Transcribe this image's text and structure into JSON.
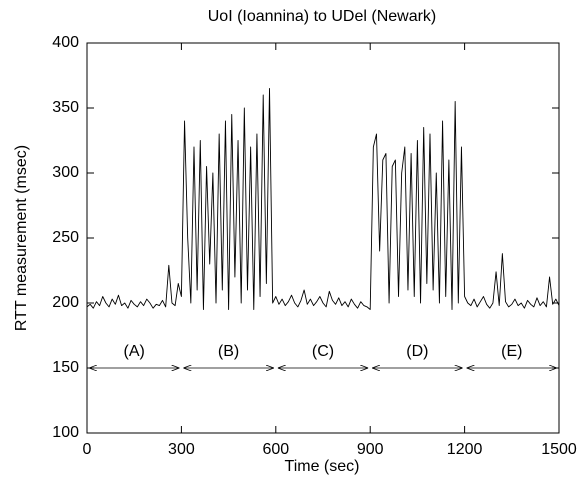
{
  "chart_data": {
    "type": "line",
    "title": "UoI (Ioannina) to UDel (Newark)",
    "xlabel": "Time (sec)",
    "ylabel": "RTT measurement (msec)",
    "x": [
      0,
      10,
      20,
      30,
      40,
      50,
      60,
      70,
      80,
      90,
      100,
      110,
      120,
      130,
      140,
      150,
      160,
      170,
      180,
      190,
      200,
      210,
      220,
      230,
      240,
      250,
      260,
      270,
      280,
      290,
      300,
      310,
      320,
      330,
      340,
      350,
      360,
      370,
      380,
      390,
      400,
      410,
      420,
      430,
      440,
      450,
      460,
      470,
      480,
      490,
      500,
      510,
      520,
      530,
      540,
      550,
      560,
      570,
      580,
      590,
      600,
      610,
      620,
      630,
      640,
      650,
      660,
      670,
      680,
      690,
      700,
      710,
      720,
      730,
      740,
      750,
      760,
      770,
      780,
      790,
      800,
      810,
      820,
      830,
      840,
      850,
      860,
      870,
      880,
      890,
      900,
      910,
      920,
      930,
      940,
      950,
      960,
      970,
      980,
      990,
      1000,
      1010,
      1020,
      1030,
      1040,
      1050,
      1060,
      1070,
      1080,
      1090,
      1100,
      1110,
      1120,
      1130,
      1140,
      1150,
      1160,
      1170,
      1180,
      1190,
      1200,
      1210,
      1220,
      1230,
      1240,
      1250,
      1260,
      1270,
      1280,
      1290,
      1300,
      1310,
      1320,
      1330,
      1340,
      1350,
      1360,
      1370,
      1380,
      1390,
      1400,
      1410,
      1420,
      1430,
      1440,
      1450,
      1460,
      1470,
      1480,
      1490,
      1500
    ],
    "series": [
      {
        "color": "#000000",
        "values": [
          197,
          199,
          196,
          201,
          198,
          205,
          200,
          197,
          203,
          199,
          206,
          198,
          200,
          196,
          202,
          199,
          197,
          201,
          198,
          203,
          200,
          196,
          199,
          198,
          202,
          197,
          229,
          200,
          198,
          215,
          205,
          340,
          250,
          200,
          320,
          210,
          325,
          195,
          305,
          230,
          300,
          200,
          330,
          210,
          340,
          195,
          345,
          220,
          325,
          200,
          350,
          210,
          320,
          195,
          330,
          205,
          360,
          215,
          365,
          200,
          205,
          199,
          203,
          198,
          201,
          206,
          200,
          197,
          202,
          210,
          199,
          203,
          198,
          201,
          205,
          200,
          197,
          209,
          202,
          199,
          204,
          198,
          201,
          197,
          203,
          199,
          196,
          201,
          198,
          197,
          195,
          320,
          330,
          240,
          310,
          315,
          200,
          305,
          310,
          205,
          300,
          320,
          210,
          315,
          205,
          325,
          200,
          335,
          215,
          330,
          210,
          300,
          200,
          340,
          205,
          310,
          195,
          355,
          200,
          320,
          205,
          200,
          198,
          203,
          197,
          201,
          205,
          199,
          196,
          200,
          224,
          198,
          238,
          201,
          197,
          199,
          203,
          198,
          200,
          196,
          202,
          199,
          197,
          204,
          198,
          201,
          197,
          220,
          199,
          203,
          198
        ]
      }
    ],
    "annotations": [
      {
        "text": "(A)",
        "x": [
          0,
          300
        ],
        "y": 150
      },
      {
        "text": "(B)",
        "x": [
          300,
          600
        ],
        "y": 150
      },
      {
        "text": "(C)",
        "x": [
          600,
          900
        ],
        "y": 150
      },
      {
        "text": "(D)",
        "x": [
          900,
          1200
        ],
        "y": 150
      },
      {
        "text": "(E)",
        "x": [
          1200,
          1500
        ],
        "y": 150
      }
    ],
    "xlim": [
      0,
      1500
    ],
    "xticks": [
      0,
      300,
      600,
      900,
      1200,
      1500
    ],
    "ylim": [
      100,
      400
    ],
    "yticks": [
      100,
      150,
      200,
      250,
      300,
      350,
      400
    ],
    "grid": false
  }
}
